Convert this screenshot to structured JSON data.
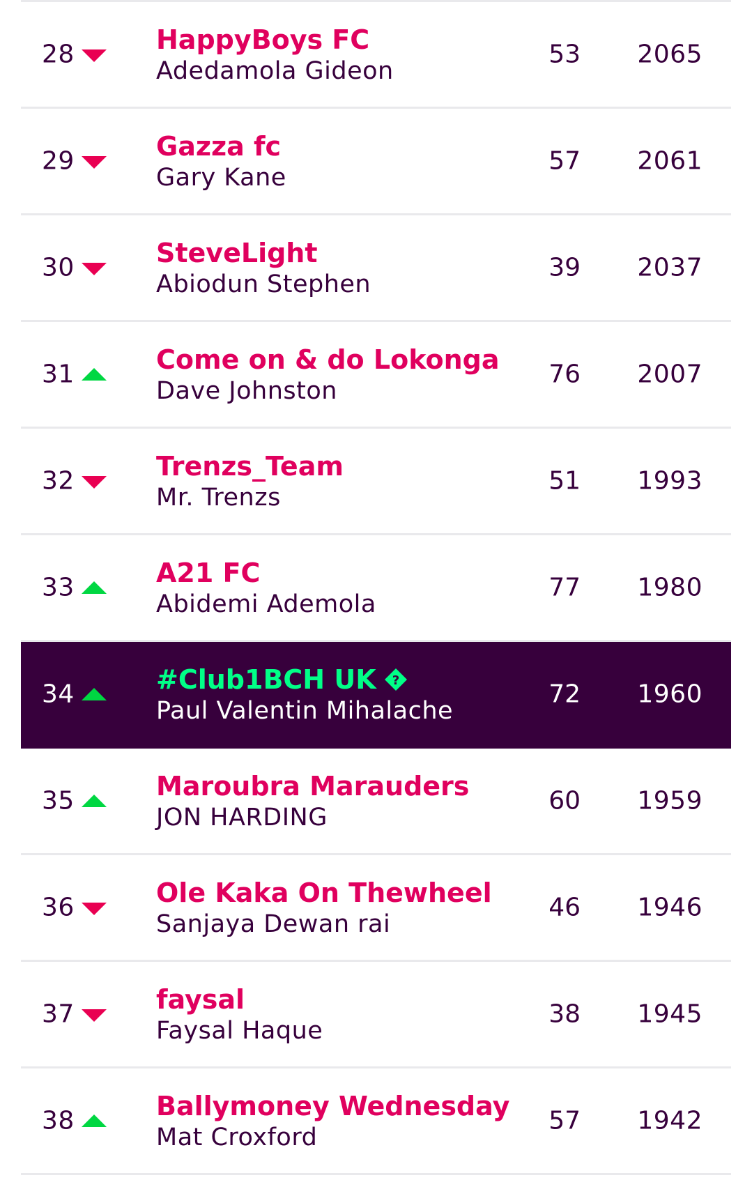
{
  "rows": [
    {
      "rank": "28",
      "move": "down",
      "team": "HappyBoys FC",
      "manager": "Adedamola Gideon",
      "gw": "53",
      "total": "2065"
    },
    {
      "rank": "29",
      "move": "down",
      "team": "Gazza fc",
      "manager": "Gary Kane",
      "gw": "57",
      "total": "2061"
    },
    {
      "rank": "30",
      "move": "down",
      "team": "SteveLight",
      "manager": "Abiodun Stephen",
      "gw": "39",
      "total": "2037"
    },
    {
      "rank": "31",
      "move": "up",
      "team": "Come on & do Lokonga",
      "manager": "Dave Johnston",
      "gw": "76",
      "total": "2007"
    },
    {
      "rank": "32",
      "move": "down",
      "team": "Trenzs_Team",
      "manager": "Mr. Trenzs",
      "gw": "51",
      "total": "1993"
    },
    {
      "rank": "33",
      "move": "up",
      "team": "A21 FC",
      "manager": "Abidemi Ademola",
      "gw": "77",
      "total": "1980"
    },
    {
      "rank": "34",
      "move": "up",
      "team": "#Club1BCH UK",
      "manager": "Paul Valentin Mihalache",
      "gw": "72",
      "total": "1960",
      "highlight": true,
      "icon": "info-diamond-icon"
    },
    {
      "rank": "35",
      "move": "up",
      "team": "Maroubra Marauders",
      "manager": "JON HARDING",
      "gw": "60",
      "total": "1959"
    },
    {
      "rank": "36",
      "move": "down",
      "team": "Ole Kaka On Thewheel",
      "manager": "Sanjaya Dewan rai",
      "gw": "46",
      "total": "1946"
    },
    {
      "rank": "37",
      "move": "down",
      "team": "faysal",
      "manager": "Faysal Haque",
      "gw": "38",
      "total": "1945"
    },
    {
      "rank": "38",
      "move": "up",
      "team": "Ballymoney Wednesday",
      "manager": "Mat Croxford",
      "gw": "57",
      "total": "1942"
    }
  ],
  "colors": {
    "team_link": "#e0005e",
    "text_primary": "#37003c",
    "highlight_bg": "#37003c",
    "highlight_team": "#00ff87",
    "arrow_up": "#00d742",
    "arrow_down": "#e90052",
    "divider": "#e9e9ec"
  }
}
